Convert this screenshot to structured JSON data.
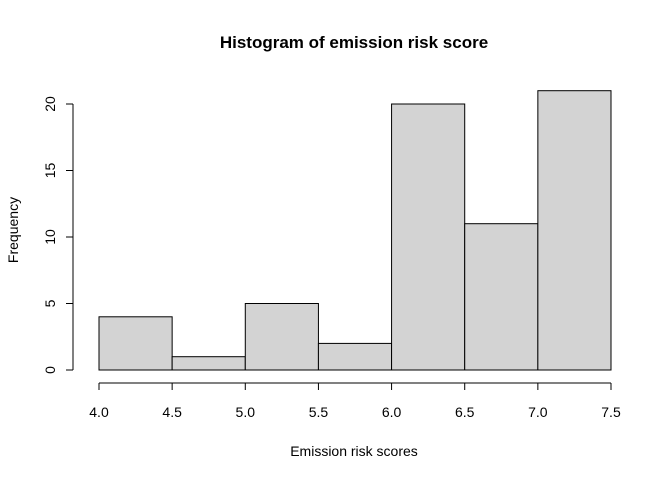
{
  "chart_data": {
    "type": "bar",
    "title": "Histogram of emission risk score",
    "xlabel": "Emission risk scores",
    "ylabel": "Frequency",
    "bin_edges": [
      4.0,
      4.5,
      5.0,
      5.5,
      6.0,
      6.5,
      7.0,
      7.5
    ],
    "values": [
      4,
      1,
      5,
      2,
      20,
      11,
      21
    ],
    "xlim": [
      4.0,
      7.5
    ],
    "ylim": [
      0,
      20
    ],
    "x_ticks": [
      "4.0",
      "4.5",
      "5.0",
      "5.5",
      "6.0",
      "6.5",
      "7.0",
      "7.5"
    ],
    "y_ticks": [
      "0",
      "5",
      "10",
      "15",
      "20"
    ],
    "grid": false,
    "bar_color": "#d3d3d3",
    "edge_color": "#000000"
  }
}
